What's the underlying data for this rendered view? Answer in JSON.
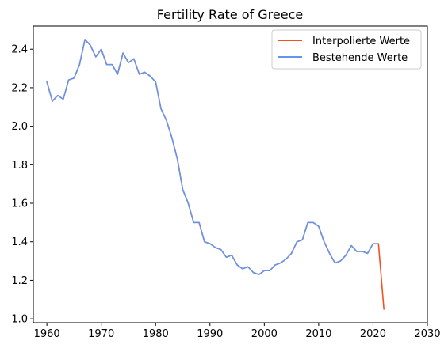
{
  "chart_data": {
    "type": "line",
    "title": "Fertility Rate of Greece",
    "xlabel": "",
    "ylabel": "",
    "xlim": [
      1957.5,
      2030
    ],
    "ylim": [
      0.98,
      2.52
    ],
    "xticks": [
      1960,
      1970,
      1980,
      1990,
      2000,
      2010,
      2020,
      2030
    ],
    "yticks": [
      1.0,
      1.2,
      1.4,
      1.6,
      1.8,
      2.0,
      2.2,
      2.4
    ],
    "grid": false,
    "legend_position": "top-right",
    "series": [
      {
        "name": "Interpolierte Werte",
        "color": "#f4511e",
        "x": [
          1960,
          1961,
          1962,
          1963,
          1964,
          1965,
          1966,
          1967,
          1968,
          1969,
          1970,
          1971,
          1972,
          1973,
          1974,
          1975,
          1976,
          1977,
          1978,
          1979,
          1980,
          1981,
          1982,
          1983,
          1984,
          1985,
          1986,
          1987,
          1988,
          1989,
          1990,
          1991,
          1992,
          1993,
          1994,
          1995,
          1996,
          1997,
          1998,
          1999,
          2000,
          2001,
          2002,
          2003,
          2004,
          2005,
          2006,
          2007,
          2008,
          2009,
          2010,
          2011,
          2012,
          2013,
          2014,
          2015,
          2016,
          2017,
          2018,
          2019,
          2020,
          2021,
          2022
        ],
        "values": [
          2.23,
          2.13,
          2.16,
          2.14,
          2.24,
          2.25,
          2.32,
          2.45,
          2.42,
          2.36,
          2.4,
          2.32,
          2.32,
          2.27,
          2.38,
          2.33,
          2.35,
          2.27,
          2.28,
          2.26,
          2.23,
          2.09,
          2.03,
          1.94,
          1.83,
          1.67,
          1.6,
          1.5,
          1.5,
          1.4,
          1.39,
          1.37,
          1.36,
          1.32,
          1.33,
          1.28,
          1.26,
          1.27,
          1.24,
          1.23,
          1.25,
          1.25,
          1.28,
          1.29,
          1.31,
          1.34,
          1.4,
          1.41,
          1.5,
          1.5,
          1.48,
          1.4,
          1.34,
          1.29,
          1.3,
          1.33,
          1.38,
          1.35,
          1.35,
          1.34,
          1.39,
          1.39,
          1.05
        ]
      },
      {
        "name": "Bestehende Werte",
        "color": "#6495ed",
        "x": [
          1960,
          1961,
          1962,
          1963,
          1964,
          1965,
          1966,
          1967,
          1968,
          1969,
          1970,
          1971,
          1972,
          1973,
          1974,
          1975,
          1976,
          1977,
          1978,
          1979,
          1980,
          1981,
          1982,
          1983,
          1984,
          1985,
          1986,
          1987,
          1988,
          1989,
          1990,
          1991,
          1992,
          1993,
          1994,
          1995,
          1996,
          1997,
          1998,
          1999,
          2000,
          2001,
          2002,
          2003,
          2004,
          2005,
          2006,
          2007,
          2008,
          2009,
          2010,
          2011,
          2012,
          2013,
          2014,
          2015,
          2016,
          2017,
          2018,
          2019,
          2020,
          2021
        ],
        "values": [
          2.23,
          2.13,
          2.16,
          2.14,
          2.24,
          2.25,
          2.32,
          2.45,
          2.42,
          2.36,
          2.4,
          2.32,
          2.32,
          2.27,
          2.38,
          2.33,
          2.35,
          2.27,
          2.28,
          2.26,
          2.23,
          2.09,
          2.03,
          1.94,
          1.83,
          1.67,
          1.6,
          1.5,
          1.5,
          1.4,
          1.39,
          1.37,
          1.36,
          1.32,
          1.33,
          1.28,
          1.26,
          1.27,
          1.24,
          1.23,
          1.25,
          1.25,
          1.28,
          1.29,
          1.31,
          1.34,
          1.4,
          1.41,
          1.5,
          1.5,
          1.48,
          1.4,
          1.34,
          1.29,
          1.3,
          1.33,
          1.38,
          1.35,
          1.35,
          1.34,
          1.39,
          1.39
        ]
      }
    ]
  }
}
